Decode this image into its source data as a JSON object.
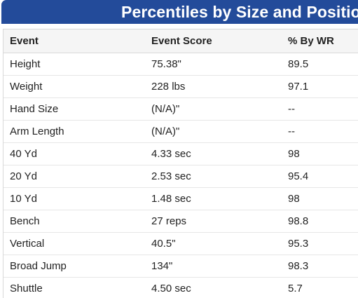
{
  "title": "Percentiles by Size and Position",
  "table": {
    "headers": [
      "Event",
      "Event Score",
      "% By WR"
    ],
    "rows": [
      [
        "Height",
        "75.38\"",
        "89.5"
      ],
      [
        "Weight",
        "228 lbs",
        "97.1"
      ],
      [
        "Hand Size",
        "(N/A)\"",
        "--"
      ],
      [
        "Arm Length",
        "(N/A)\"",
        "--"
      ],
      [
        "40 Yd",
        "4.33 sec",
        "98"
      ],
      [
        "20 Yd",
        "2.53 sec",
        "95.4"
      ],
      [
        "10 Yd",
        "1.48 sec",
        "98"
      ],
      [
        "Bench",
        "27 reps",
        "98.8"
      ],
      [
        "Vertical",
        "40.5\"",
        "95.3"
      ],
      [
        "Broad Jump",
        "134\"",
        "98.3"
      ],
      [
        "Shuttle",
        "4.50 sec",
        "5.7"
      ]
    ]
  },
  "colors": {
    "title_background": "#234b9a",
    "title_text": "#ffffff",
    "header_background": "#f5f5f5",
    "border": "#d9d9d9"
  }
}
